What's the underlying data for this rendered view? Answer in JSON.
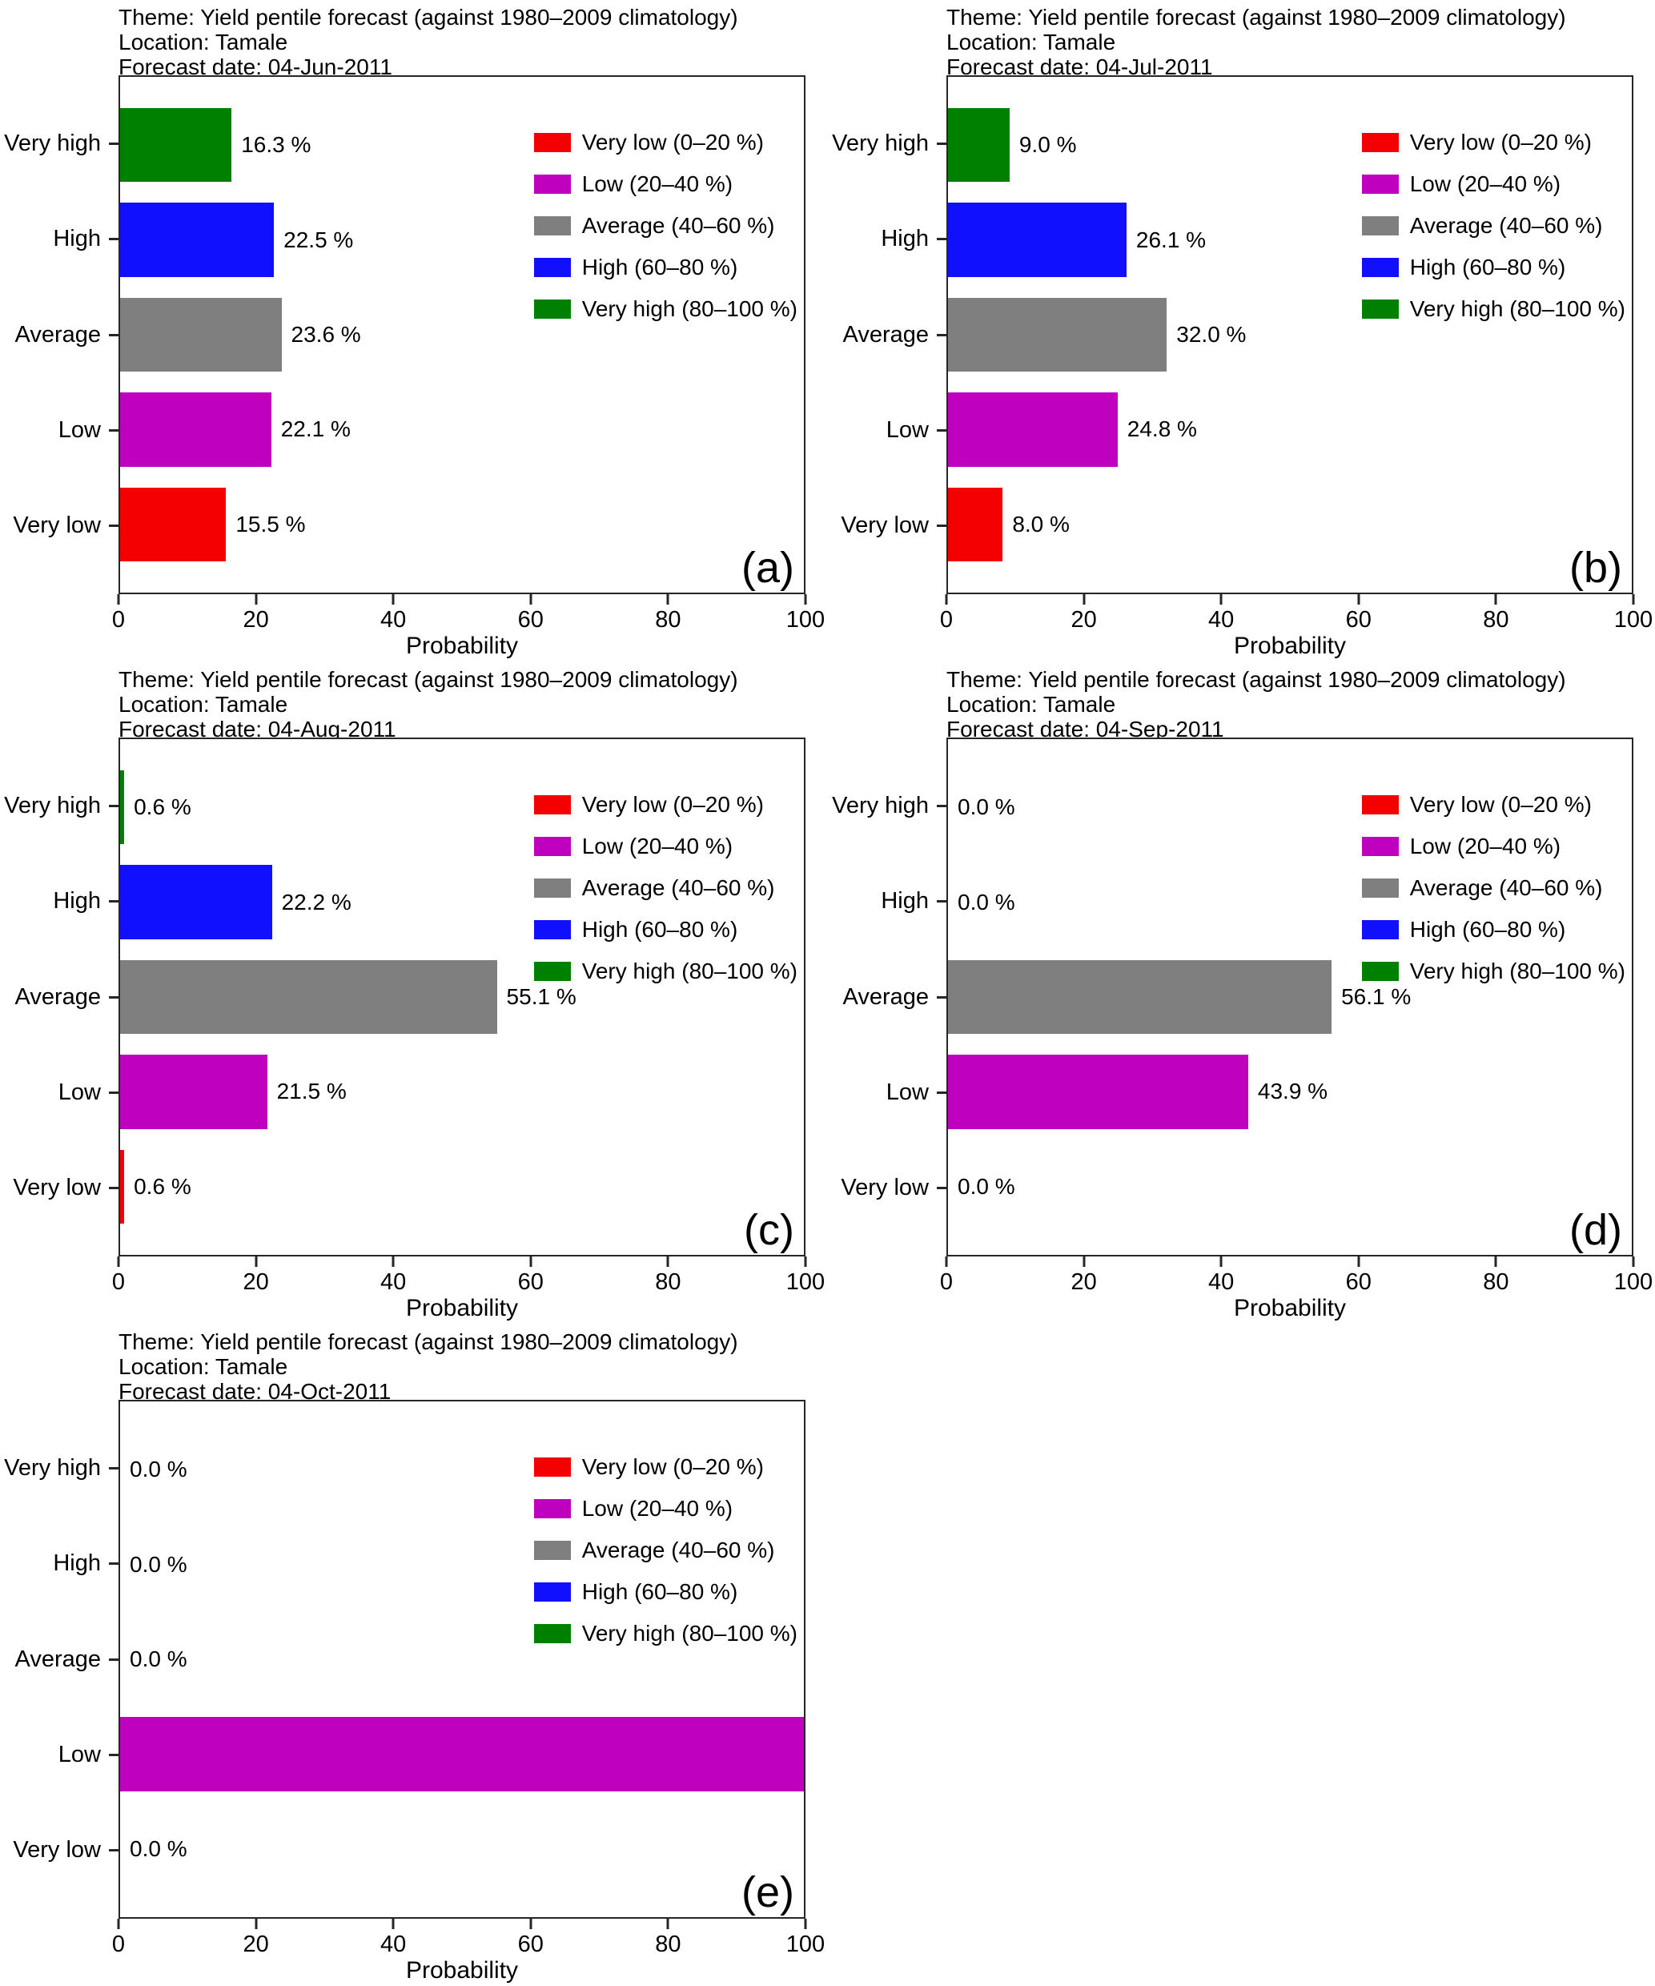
{
  "figure": {
    "background": "#ffffff",
    "text_color": "#000000",
    "axis_color": "#262626"
  },
  "category_colors": {
    "Very low": "#f40000",
    "Low": "#bf00bf",
    "Average": "#7f7f7f",
    "High": "#1010ff",
    "Very high": "#008000"
  },
  "legend": {
    "items": [
      {
        "label": "Very low (0–20 %)",
        "color": "#f40000"
      },
      {
        "label": "Low (20–40 %)",
        "color": "#bf00bf"
      },
      {
        "label": "Average (40–60 %)",
        "color": "#7f7f7f"
      },
      {
        "label": "High (60–80 %)",
        "color": "#1010ff"
      },
      {
        "label": "Very high (80–100 %)",
        "color": "#008000"
      }
    ]
  },
  "chart_data": [
    {
      "type": "bar",
      "orientation": "horizontal",
      "panel_label": "(a)",
      "title": "Theme: Yield pentile forecast (against 1980–2009 climatology)",
      "location_line": "Location: Tamale",
      "forecast_date_line": "Forecast date: 04-Jun-2011",
      "categories": [
        "Very high",
        "High",
        "Average",
        "Low",
        "Very low"
      ],
      "values": [
        16.3,
        22.5,
        23.6,
        22.1,
        15.5
      ],
      "value_labels": [
        "16.3 %",
        "22.5 %",
        "23.6 %",
        "22.1 %",
        "15.5 %"
      ],
      "xlabel": "Probability",
      "xlim": [
        0,
        100
      ],
      "xticks": [
        0,
        20,
        40,
        60,
        80,
        100
      ],
      "legend_position": "upper right",
      "grid": false
    },
    {
      "type": "bar",
      "orientation": "horizontal",
      "panel_label": "(b)",
      "title": "Theme: Yield pentile forecast (against 1980–2009 climatology)",
      "location_line": "Location: Tamale",
      "forecast_date_line": "Forecast date: 04-Jul-2011",
      "categories": [
        "Very high",
        "High",
        "Average",
        "Low",
        "Very low"
      ],
      "values": [
        9.0,
        26.1,
        32.0,
        24.8,
        8.0
      ],
      "value_labels": [
        "9.0 %",
        "26.1 %",
        "32.0 %",
        "24.8 %",
        "8.0 %"
      ],
      "xlabel": "Probability",
      "xlim": [
        0,
        100
      ],
      "xticks": [
        0,
        20,
        40,
        60,
        80,
        100
      ],
      "legend_position": "upper right",
      "grid": false
    },
    {
      "type": "bar",
      "orientation": "horizontal",
      "panel_label": "(c)",
      "title": "Theme: Yield pentile forecast (against 1980–2009 climatology)",
      "location_line": "Location: Tamale",
      "forecast_date_line": "Forecast date: 04-Aug-2011",
      "categories": [
        "Very high",
        "High",
        "Average",
        "Low",
        "Very low"
      ],
      "values": [
        0.6,
        22.2,
        55.1,
        21.5,
        0.6
      ],
      "value_labels": [
        "0.6 %",
        "22.2 %",
        "55.1 %",
        "21.5 %",
        "0.6 %"
      ],
      "xlabel": "Probability",
      "xlim": [
        0,
        100
      ],
      "xticks": [
        0,
        20,
        40,
        60,
        80,
        100
      ],
      "legend_position": "upper right",
      "grid": false
    },
    {
      "type": "bar",
      "orientation": "horizontal",
      "panel_label": "(d)",
      "title": "Theme: Yield pentile forecast (against 1980–2009 climatology)",
      "location_line": "Location: Tamale",
      "forecast_date_line": "Forecast date: 04-Sep-2011",
      "categories": [
        "Very high",
        "High",
        "Average",
        "Low",
        "Very low"
      ],
      "values": [
        0.0,
        0.0,
        56.1,
        43.9,
        0.0
      ],
      "value_labels": [
        "0.0 %",
        "0.0 %",
        "56.1 %",
        "43.9 %",
        "0.0 %"
      ],
      "xlabel": "Probability",
      "xlim": [
        0,
        100
      ],
      "xticks": [
        0,
        20,
        40,
        60,
        80,
        100
      ],
      "legend_position": "upper right",
      "grid": false
    },
    {
      "type": "bar",
      "orientation": "horizontal",
      "panel_label": "(e)",
      "title": "Theme: Yield pentile forecast (against 1980–2009 climatology)",
      "location_line": "Location: Tamale",
      "forecast_date_line": "Forecast date: 04-Oct-2011",
      "categories": [
        "Very high",
        "High",
        "Average",
        "Low",
        "Very low"
      ],
      "values": [
        0.0,
        0.0,
        0.0,
        100.0,
        0.0
      ],
      "value_labels": [
        "0.0 %",
        "0.0 %",
        "0.0 %",
        "",
        "0.0 %"
      ],
      "xlabel": "Probability",
      "xlim": [
        0,
        100
      ],
      "xticks": [
        0,
        20,
        40,
        60,
        80,
        100
      ],
      "legend_position": "upper right",
      "grid": false
    }
  ]
}
